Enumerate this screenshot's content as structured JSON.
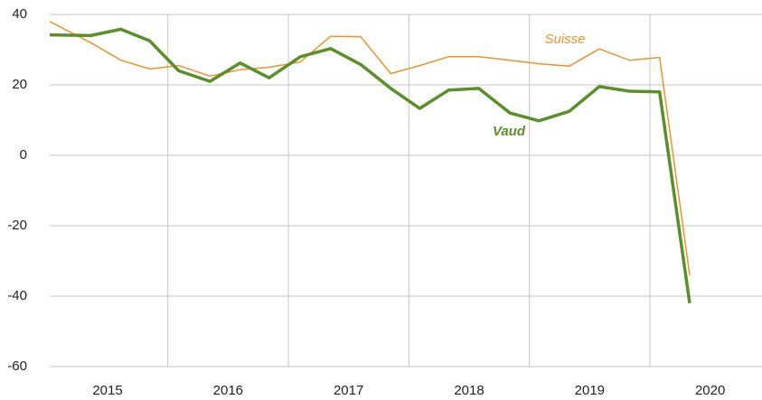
{
  "chart_data": {
    "type": "line",
    "x": [
      2015.02,
      2015.36,
      2015.61,
      2015.85,
      2016.09,
      2016.35,
      2016.6,
      2016.84,
      2017.1,
      2017.35,
      2017.6,
      2017.85,
      2018.09,
      2018.33,
      2018.58,
      2018.84,
      2019.08,
      2019.33,
      2019.58,
      2019.83,
      2020.08,
      2020.33
    ],
    "series": [
      {
        "name": "Suisse",
        "color": "#f0922b",
        "values": [
          38,
          32,
          27,
          24.5,
          25.5,
          22.5,
          24.3,
          25,
          26.5,
          33.8,
          33.7,
          23.2,
          25.5,
          28,
          28,
          27,
          26,
          25.3,
          30.2,
          27,
          27.8,
          -34
        ]
      },
      {
        "name": "Vaud",
        "color": "#5a8f29",
        "values": [
          34.2,
          34,
          35.8,
          32.5,
          24,
          21,
          26.2,
          22,
          28,
          30.3,
          25.8,
          19,
          13.3,
          18.5,
          19,
          12,
          9.8,
          12.5,
          19.5,
          18.2,
          18,
          -42
        ]
      }
    ],
    "xlim": [
      2015.02,
      2020.93
    ],
    "xticks": [
      {
        "value": 2015.5,
        "label": "2015"
      },
      {
        "value": 2016.5,
        "label": "2016"
      },
      {
        "value": 2017.5,
        "label": "2017"
      },
      {
        "value": 2018.5,
        "label": "2018"
      },
      {
        "value": 2019.5,
        "label": "2019"
      },
      {
        "value": 2020.5,
        "label": "2020"
      }
    ],
    "xgrid": [
      2016,
      2017,
      2018,
      2019,
      2020
    ],
    "ylim": [
      -60,
      40
    ],
    "yticks": [
      -60,
      -40,
      -20,
      0,
      20,
      40
    ],
    "grid": true
  }
}
